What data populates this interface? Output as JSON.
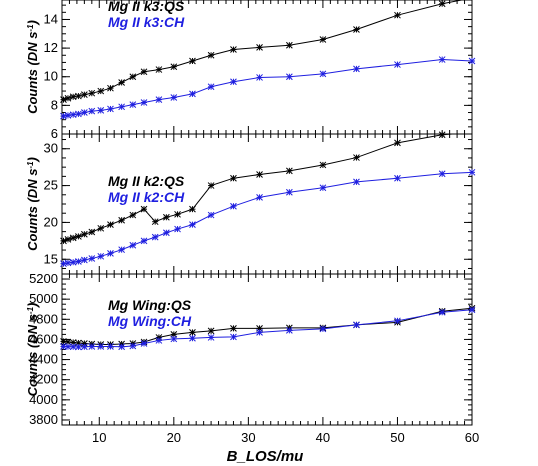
{
  "chart_data": [
    {
      "type": "line",
      "panel": "top",
      "ylabel": "Counts (DN s",
      "ylabel_superscript": "-1",
      "ylabel_suffix": ")",
      "xlim": [
        5,
        60
      ],
      "ylim": [
        6,
        15.5
      ],
      "yticks": [
        6,
        8,
        10,
        12,
        14
      ],
      "series": [
        {
          "name": "Mg II k3:QS",
          "color": "#000000",
          "x": [
            5.2,
            5.8,
            6.5,
            7.2,
            8.0,
            9.0,
            10.2,
            11.5,
            13.0,
            14.5,
            16.0,
            18.0,
            20.0,
            22.5,
            25.0,
            28.0,
            31.5,
            35.5,
            40.0,
            44.5,
            50.0,
            56.0,
            60.0
          ],
          "values": [
            8.4,
            8.5,
            8.6,
            8.65,
            8.75,
            8.85,
            9.0,
            9.2,
            9.6,
            10.0,
            10.35,
            10.5,
            10.7,
            11.1,
            11.5,
            11.9,
            12.05,
            12.2,
            12.6,
            13.3,
            14.3,
            15.1,
            15.5
          ]
        },
        {
          "name": "Mg II k3:CH",
          "color": "#1f1fe0",
          "x": [
            5.2,
            5.8,
            6.5,
            7.2,
            8.0,
            9.0,
            10.2,
            11.5,
            13.0,
            14.5,
            16.0,
            18.0,
            20.0,
            22.5,
            25.0,
            28.0,
            31.5,
            35.5,
            40.0,
            44.5,
            50.0,
            56.0,
            60.0
          ],
          "values": [
            7.25,
            7.3,
            7.35,
            7.4,
            7.5,
            7.6,
            7.65,
            7.75,
            7.9,
            8.05,
            8.2,
            8.4,
            8.55,
            8.8,
            9.3,
            9.65,
            9.95,
            10.0,
            10.2,
            10.55,
            10.85,
            11.2,
            11.1
          ]
        }
      ]
    },
    {
      "type": "line",
      "panel": "middle",
      "ylabel": "Counts (DN s",
      "ylabel_superscript": "-1",
      "ylabel_suffix": ")",
      "xlim": [
        5,
        60
      ],
      "ylim": [
        13,
        32
      ],
      "yticks": [
        15,
        20,
        25,
        30
      ],
      "series": [
        {
          "name": "Mg II k2:QS",
          "color": "#000000",
          "x": [
            5.2,
            5.8,
            6.5,
            7.2,
            8.0,
            9.0,
            10.2,
            11.5,
            13.0,
            14.5,
            16.0,
            17.5,
            19.0,
            20.5,
            22.5,
            25.0,
            28.0,
            31.5,
            35.5,
            40.0,
            44.5,
            50.0,
            56.0,
            60.0
          ],
          "values": [
            17.5,
            17.7,
            17.9,
            18.1,
            18.4,
            18.7,
            19.2,
            19.7,
            20.3,
            21.0,
            21.8,
            20.1,
            20.7,
            21.1,
            21.8,
            25.0,
            26.0,
            26.5,
            27.0,
            27.8,
            28.8,
            30.8,
            31.9,
            32.2
          ]
        },
        {
          "name": "Mg II k2:CH",
          "color": "#1f1fe0",
          "x": [
            5.2,
            5.8,
            6.5,
            7.2,
            8.0,
            9.0,
            10.2,
            11.5,
            13.0,
            14.5,
            16.0,
            17.5,
            19.0,
            20.5,
            22.5,
            25.0,
            28.0,
            31.5,
            35.5,
            40.0,
            44.5,
            50.0,
            56.0,
            60.0
          ],
          "values": [
            14.4,
            14.5,
            14.6,
            14.7,
            14.9,
            15.1,
            15.4,
            15.8,
            16.3,
            16.9,
            17.5,
            18.0,
            18.6,
            19.1,
            19.7,
            21.0,
            22.2,
            23.4,
            24.1,
            24.7,
            25.5,
            26.0,
            26.6,
            26.8
          ]
        }
      ]
    },
    {
      "type": "line",
      "panel": "bottom",
      "ylabel": "Counts (DN s",
      "ylabel_superscript": "-1",
      "ylabel_suffix": ")",
      "xlabel": "B_LOS/mu",
      "xlim": [
        5,
        60
      ],
      "ylim": [
        3750,
        5250
      ],
      "yticks": [
        3800,
        4000,
        4200,
        4400,
        4600,
        4800,
        5000,
        5200
      ],
      "xticks": [
        10,
        20,
        30,
        40,
        50,
        60
      ],
      "series": [
        {
          "name": "Mg Wing:QS",
          "color": "#000000",
          "x": [
            5.2,
            5.8,
            6.5,
            7.2,
            8.0,
            9.0,
            10.2,
            11.5,
            13.0,
            14.5,
            16.0,
            18.0,
            20.0,
            22.5,
            25.0,
            28.0,
            31.5,
            35.5,
            40.0,
            44.5,
            50.0,
            56.0,
            60.0
          ],
          "values": [
            4580,
            4575,
            4570,
            4565,
            4560,
            4555,
            4550,
            4550,
            4555,
            4560,
            4575,
            4620,
            4650,
            4670,
            4685,
            4710,
            4710,
            4715,
            4715,
            4745,
            4770,
            4880,
            4910
          ]
        },
        {
          "name": "Mg Wing:CH",
          "color": "#1f1fe0",
          "x": [
            5.2,
            5.8,
            6.5,
            7.2,
            8.0,
            9.0,
            10.2,
            11.5,
            13.0,
            14.5,
            16.0,
            18.0,
            20.0,
            22.5,
            25.0,
            28.0,
            31.5,
            35.5,
            40.0,
            44.5,
            50.0,
            56.0,
            60.0
          ],
          "values": [
            4530,
            4528,
            4527,
            4525,
            4527,
            4530,
            4530,
            4530,
            4527,
            4535,
            4560,
            4590,
            4605,
            4612,
            4620,
            4625,
            4670,
            4690,
            4705,
            4745,
            4785,
            4870,
            4895
          ]
        }
      ]
    }
  ]
}
